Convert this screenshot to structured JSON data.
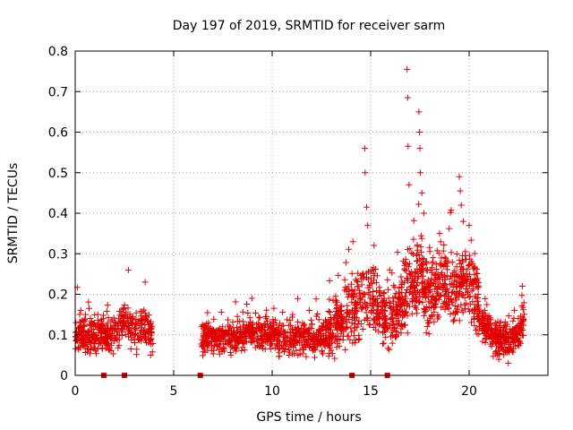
{
  "chart_data": {
    "type": "scatter",
    "title": "Day 197 of 2019, SRMTID for receiver sarm",
    "xlabel": "GPS time / hours",
    "ylabel": "SRMTID / TECUs",
    "xlim": [
      0,
      24
    ],
    "ylim": [
      0,
      0.8
    ],
    "xticks": [
      0,
      5,
      10,
      15,
      20
    ],
    "yticks": [
      0,
      0.1,
      0.2,
      0.3,
      0.4,
      0.5,
      0.6,
      0.7,
      0.8
    ],
    "xtick_labels": [
      "0",
      "5",
      "10",
      "15",
      "20"
    ],
    "ytick_labels": [
      "0",
      "0.1",
      "0.2",
      "0.3",
      "0.4",
      "0.5",
      "0.6",
      "0.7",
      "0.8"
    ],
    "grid": true,
    "marker": "+",
    "color": "#e00000",
    "gap_markers_x": [
      1.45,
      2.5,
      6.35,
      14.05,
      15.85
    ],
    "series": [
      {
        "name": "SRMTID",
        "segments": [
          {
            "start": 0.0,
            "end": 3.95,
            "base": [
              [
                0.0,
                0.1
              ],
              [
                0.5,
                0.09
              ],
              [
                1.2,
                0.1
              ],
              [
                2.0,
                0.11
              ],
              [
                2.6,
                0.14
              ],
              [
                3.1,
                0.1
              ],
              [
                3.5,
                0.13
              ],
              [
                3.95,
                0.09
              ]
            ],
            "spread": 0.035,
            "count": 420
          },
          {
            "start": 6.4,
            "end": 13.0,
            "base": [
              [
                6.4,
                0.09
              ],
              [
                8.0,
                0.09
              ],
              [
                9.0,
                0.11
              ],
              [
                10.0,
                0.1
              ],
              [
                11.0,
                0.09
              ],
              [
                12.0,
                0.09
              ],
              [
                13.0,
                0.1
              ]
            ],
            "spread": 0.03,
            "count": 700
          },
          {
            "start": 12.8,
            "end": 16.5,
            "base": [
              [
                12.8,
                0.11
              ],
              [
                13.5,
                0.14
              ],
              [
                14.2,
                0.17
              ],
              [
                14.8,
                0.2
              ],
              [
                15.3,
                0.18
              ],
              [
                15.8,
                0.14
              ],
              [
                16.5,
                0.15
              ]
            ],
            "spread": 0.06,
            "count": 420
          },
          {
            "start": 16.5,
            "end": 20.5,
            "base": [
              [
                16.5,
                0.16
              ],
              [
                17.0,
                0.22
              ],
              [
                17.5,
                0.24
              ],
              [
                18.0,
                0.2
              ],
              [
                18.6,
                0.23
              ],
              [
                19.2,
                0.2
              ],
              [
                19.7,
                0.24
              ],
              [
                20.2,
                0.21
              ],
              [
                20.5,
                0.18
              ]
            ],
            "spread": 0.07,
            "count": 520
          },
          {
            "start": 20.4,
            "end": 22.8,
            "base": [
              [
                20.4,
                0.14
              ],
              [
                21.0,
                0.11
              ],
              [
                21.5,
                0.09
              ],
              [
                22.0,
                0.08
              ],
              [
                22.5,
                0.1
              ],
              [
                22.8,
                0.14
              ]
            ],
            "spread": 0.03,
            "count": 300
          }
        ],
        "peaks": [
          {
            "x": 16.85,
            "y": 0.755
          },
          {
            "x": 16.88,
            "y": 0.685
          },
          {
            "x": 16.9,
            "y": 0.565
          },
          {
            "x": 16.95,
            "y": 0.47
          },
          {
            "x": 17.45,
            "y": 0.65
          },
          {
            "x": 17.48,
            "y": 0.6
          },
          {
            "x": 17.5,
            "y": 0.56
          },
          {
            "x": 17.52,
            "y": 0.5
          },
          {
            "x": 17.6,
            "y": 0.45
          },
          {
            "x": 17.7,
            "y": 0.4
          },
          {
            "x": 14.7,
            "y": 0.56
          },
          {
            "x": 14.72,
            "y": 0.5
          },
          {
            "x": 14.8,
            "y": 0.415
          },
          {
            "x": 14.85,
            "y": 0.37
          },
          {
            "x": 19.5,
            "y": 0.49
          },
          {
            "x": 19.55,
            "y": 0.455
          },
          {
            "x": 19.6,
            "y": 0.42
          },
          {
            "x": 19.7,
            "y": 0.38
          },
          {
            "x": 14.1,
            "y": 0.33
          },
          {
            "x": 18.5,
            "y": 0.35
          },
          {
            "x": 20.0,
            "y": 0.37
          },
          {
            "x": 2.7,
            "y": 0.26
          },
          {
            "x": 3.55,
            "y": 0.23
          },
          {
            "x": 22.7,
            "y": 0.22
          }
        ]
      }
    ]
  }
}
